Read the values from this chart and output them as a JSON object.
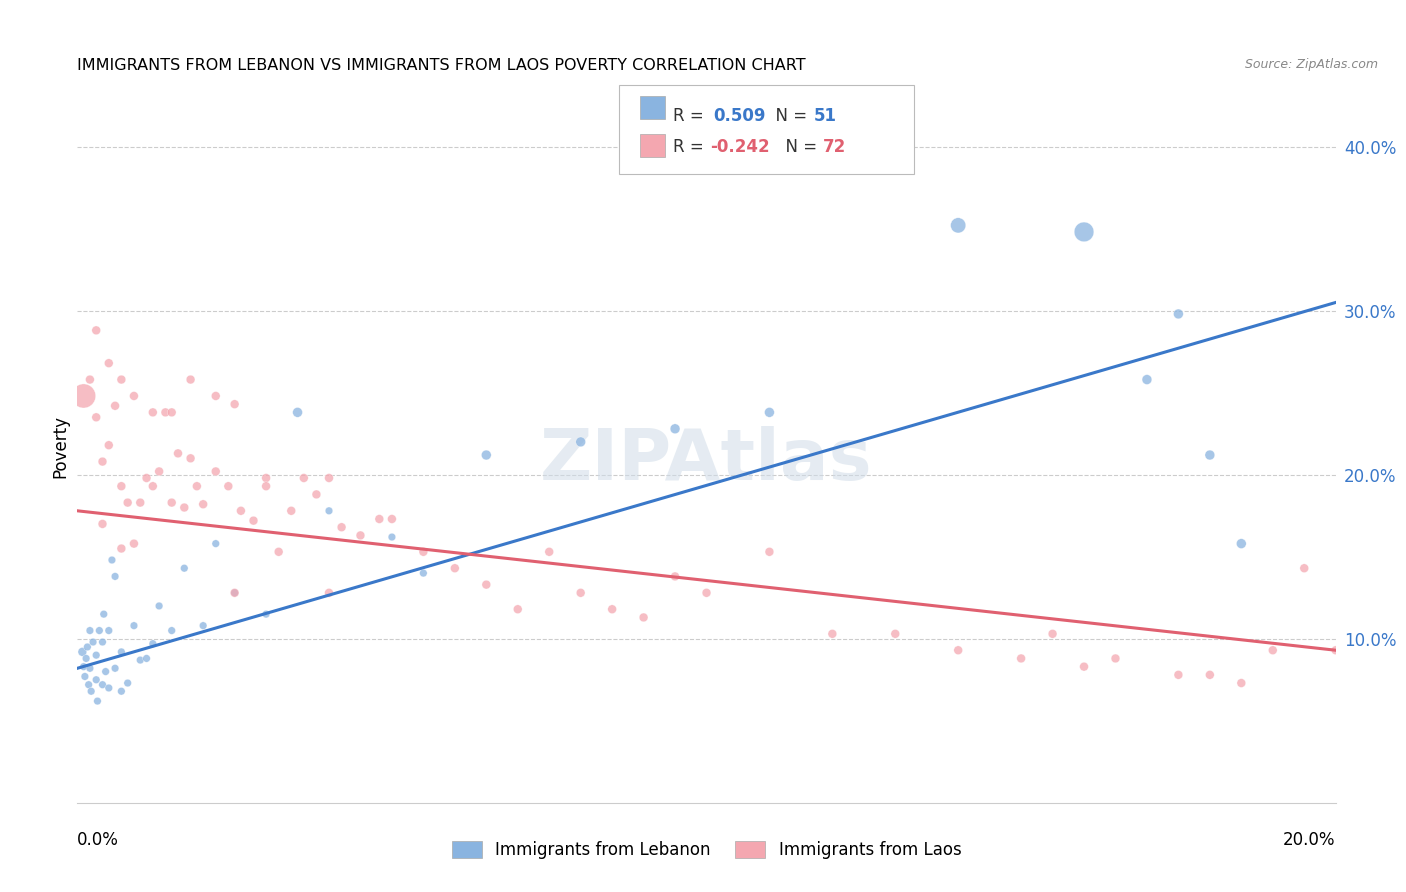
{
  "title": "IMMIGRANTS FROM LEBANON VS IMMIGRANTS FROM LAOS POVERTY CORRELATION CHART",
  "source": "Source: ZipAtlas.com",
  "ylabel": "Poverty",
  "yticks_labels": [
    "10.0%",
    "20.0%",
    "30.0%",
    "40.0%"
  ],
  "ytick_vals": [
    0.1,
    0.2,
    0.3,
    0.4
  ],
  "xlim": [
    0.0,
    0.2
  ],
  "ylim": [
    0.0,
    0.435
  ],
  "color_lebanon": "#8ab4e0",
  "color_laos": "#f4a7b0",
  "color_blue_line": "#3a78c9",
  "color_pink_line": "#e06070",
  "watermark": "ZIPAtlas",
  "blue_line_x": [
    0.0,
    0.2
  ],
  "blue_line_y": [
    0.082,
    0.305
  ],
  "pink_line_x": [
    0.0,
    0.2
  ],
  "pink_line_y": [
    0.178,
    0.093
  ],
  "lebanon_x": [
    0.0008,
    0.001,
    0.0012,
    0.0014,
    0.0016,
    0.0018,
    0.002,
    0.002,
    0.0022,
    0.0025,
    0.003,
    0.003,
    0.0032,
    0.0035,
    0.004,
    0.004,
    0.0042,
    0.0045,
    0.005,
    0.005,
    0.0055,
    0.006,
    0.006,
    0.007,
    0.007,
    0.008,
    0.009,
    0.01,
    0.011,
    0.012,
    0.013,
    0.015,
    0.017,
    0.02,
    0.022,
    0.025,
    0.03,
    0.035,
    0.04,
    0.05,
    0.055,
    0.065,
    0.08,
    0.095,
    0.11,
    0.14,
    0.16,
    0.17,
    0.175,
    0.18,
    0.185
  ],
  "lebanon_y": [
    0.092,
    0.083,
    0.077,
    0.088,
    0.095,
    0.072,
    0.082,
    0.105,
    0.068,
    0.098,
    0.075,
    0.09,
    0.062,
    0.105,
    0.072,
    0.098,
    0.115,
    0.08,
    0.07,
    0.105,
    0.148,
    0.082,
    0.138,
    0.068,
    0.092,
    0.073,
    0.108,
    0.087,
    0.088,
    0.097,
    0.12,
    0.105,
    0.143,
    0.108,
    0.158,
    0.128,
    0.115,
    0.238,
    0.178,
    0.162,
    0.14,
    0.212,
    0.22,
    0.228,
    0.238,
    0.352,
    0.348,
    0.258,
    0.298,
    0.212,
    0.158
  ],
  "lebanon_s": [
    40,
    30,
    30,
    30,
    30,
    30,
    30,
    30,
    30,
    30,
    30,
    30,
    30,
    30,
    30,
    30,
    30,
    30,
    30,
    30,
    30,
    30,
    30,
    30,
    30,
    30,
    30,
    30,
    30,
    30,
    30,
    30,
    30,
    30,
    30,
    30,
    30,
    50,
    30,
    30,
    30,
    50,
    50,
    50,
    50,
    120,
    200,
    50,
    50,
    50,
    50
  ],
  "laos_x": [
    0.001,
    0.002,
    0.003,
    0.004,
    0.004,
    0.005,
    0.006,
    0.007,
    0.007,
    0.008,
    0.009,
    0.01,
    0.011,
    0.012,
    0.013,
    0.014,
    0.015,
    0.016,
    0.017,
    0.018,
    0.019,
    0.02,
    0.022,
    0.024,
    0.025,
    0.026,
    0.028,
    0.03,
    0.032,
    0.034,
    0.036,
    0.038,
    0.04,
    0.042,
    0.045,
    0.048,
    0.05,
    0.055,
    0.06,
    0.065,
    0.07,
    0.075,
    0.08,
    0.085,
    0.09,
    0.095,
    0.1,
    0.11,
    0.12,
    0.13,
    0.14,
    0.15,
    0.155,
    0.16,
    0.165,
    0.175,
    0.18,
    0.185,
    0.19,
    0.195,
    0.2,
    0.003,
    0.005,
    0.007,
    0.009,
    0.012,
    0.015,
    0.018,
    0.022,
    0.025,
    0.03,
    0.04
  ],
  "laos_y": [
    0.248,
    0.258,
    0.235,
    0.208,
    0.17,
    0.218,
    0.242,
    0.193,
    0.155,
    0.183,
    0.248,
    0.183,
    0.198,
    0.193,
    0.202,
    0.238,
    0.183,
    0.213,
    0.18,
    0.21,
    0.193,
    0.182,
    0.202,
    0.193,
    0.243,
    0.178,
    0.172,
    0.198,
    0.153,
    0.178,
    0.198,
    0.188,
    0.198,
    0.168,
    0.163,
    0.173,
    0.173,
    0.153,
    0.143,
    0.133,
    0.118,
    0.153,
    0.128,
    0.118,
    0.113,
    0.138,
    0.128,
    0.153,
    0.103,
    0.103,
    0.093,
    0.088,
    0.103,
    0.083,
    0.088,
    0.078,
    0.078,
    0.073,
    0.093,
    0.143,
    0.093,
    0.288,
    0.268,
    0.258,
    0.158,
    0.238,
    0.238,
    0.258,
    0.248,
    0.128,
    0.193,
    0.128
  ],
  "laos_s": [
    300,
    40,
    40,
    40,
    40,
    40,
    40,
    40,
    40,
    40,
    40,
    40,
    40,
    40,
    40,
    40,
    40,
    40,
    40,
    40,
    40,
    40,
    40,
    40,
    40,
    40,
    40,
    40,
    40,
    40,
    40,
    40,
    40,
    40,
    40,
    40,
    40,
    40,
    40,
    40,
    40,
    40,
    40,
    40,
    40,
    40,
    40,
    40,
    40,
    40,
    40,
    40,
    40,
    40,
    40,
    40,
    40,
    40,
    40,
    40,
    40,
    40,
    40,
    40,
    40,
    40,
    40,
    40,
    40,
    40,
    40,
    40
  ]
}
